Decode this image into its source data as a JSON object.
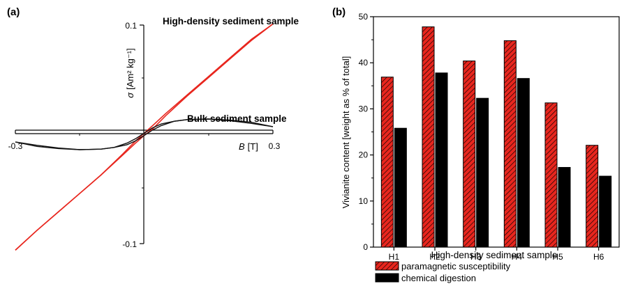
{
  "chart_data": [
    {
      "panel_label": "(a)",
      "type": "line",
      "xlabel_symbol": "B",
      "xlabel_unit": "[T]",
      "ylabel_symbol": "σ",
      "ylabel_unit": "[Am² kg⁻¹]",
      "xlim": [
        -0.3,
        0.3
      ],
      "ylim": [
        -0.1,
        0.1
      ],
      "x_tick_labels": [
        "-0.3",
        "0.3"
      ],
      "y_tick_labels": [
        "0.1",
        "-0.1"
      ],
      "grid": false,
      "series": [
        {
          "name": "High-density sediment sample",
          "color": "#e8261e",
          "branches": [
            {
              "x": [
                -0.3,
                -0.25,
                -0.2,
                -0.15,
                -0.1,
                -0.05,
                -0.02,
                0,
                0.02,
                0.05,
                0.1,
                0.15,
                0.2,
                0.25,
                0.3
              ],
              "y": [
                -0.106,
                -0.088,
                -0.071,
                -0.054,
                -0.037,
                -0.019,
                -0.008,
                -0.001,
                0.005,
                0.017,
                0.035,
                0.052,
                0.069,
                0.086,
                0.101
              ]
            },
            {
              "x": [
                -0.3,
                -0.25,
                -0.2,
                -0.15,
                -0.1,
                -0.05,
                -0.02,
                0,
                0.02,
                0.05,
                0.1,
                0.15,
                0.2,
                0.25,
                0.3
              ],
              "y": [
                -0.106,
                -0.088,
                -0.071,
                -0.054,
                -0.037,
                -0.018,
                -0.006,
                0.001,
                0.008,
                0.019,
                0.036,
                0.053,
                0.07,
                0.087,
                0.101
              ]
            }
          ]
        },
        {
          "name": "Bulk sediment sample",
          "color": "#111111",
          "branches": [
            {
              "x": [
                -0.3,
                -0.25,
                -0.2,
                -0.15,
                -0.1,
                -0.07,
                -0.04,
                -0.02,
                0,
                0.02,
                0.04,
                0.07,
                0.1,
                0.15,
                0.2,
                0.25,
                0.3
              ],
              "y": [
                -0.007,
                -0.011,
                -0.013,
                -0.014,
                -0.0135,
                -0.012,
                -0.008,
                -0.004,
                0.001,
                0.006,
                0.0095,
                0.012,
                0.0135,
                0.014,
                0.0125,
                0.01,
                0.007
              ]
            },
            {
              "x": [
                -0.3,
                -0.25,
                -0.2,
                -0.15,
                -0.1,
                -0.07,
                -0.04,
                -0.02,
                0,
                0.02,
                0.04,
                0.07,
                0.1,
                0.15,
                0.2,
                0.25,
                0.3
              ],
              "y": [
                -0.007,
                -0.01,
                -0.0125,
                -0.014,
                -0.0135,
                -0.012,
                -0.0095,
                -0.006,
                -0.001,
                0.004,
                0.008,
                0.012,
                0.0135,
                0.014,
                0.013,
                0.011,
                0.007
              ]
            }
          ]
        }
      ]
    },
    {
      "panel_label": "(b)",
      "type": "bar",
      "categories": [
        "H1",
        "H2",
        "H3",
        "H4",
        "H5",
        "H6"
      ],
      "xlabel": "High-density sediment sample",
      "ylabel": "Vivianite content [weight as % of total]",
      "ylim": [
        0,
        50
      ],
      "y_ticks": [
        0,
        10,
        20,
        30,
        40,
        50
      ],
      "grid": false,
      "legend_position": "below",
      "series": [
        {
          "name": "paramagnetic susceptibility",
          "values": [
            36.9,
            47.8,
            40.4,
            44.8,
            31.3,
            22.1
          ],
          "color": "#e8261e",
          "pattern": "diagonal-hatch"
        },
        {
          "name": "chemical digestion",
          "values": [
            25.8,
            37.8,
            32.3,
            36.6,
            17.3,
            15.4
          ],
          "color": "#000000"
        }
      ]
    }
  ]
}
